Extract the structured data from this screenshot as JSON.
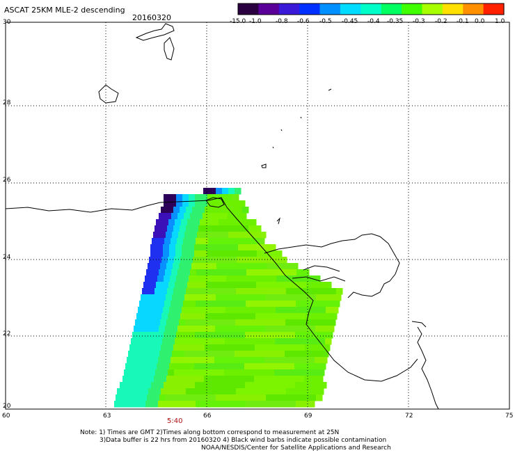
{
  "title": "ASCAT 25KM MLE-2 descending",
  "date": "20160320",
  "colorbar": {
    "labels": [
      "-15.0",
      "-1.0",
      "-0.8",
      "-0.6",
      "-0.5",
      "-0.45",
      "-0.4",
      "-0.35",
      "-0.3",
      "-0.2",
      "-0.1",
      "0.0",
      "1.0"
    ],
    "colors": [
      "#2a0040",
      "#5a0098",
      "#3a1ad8",
      "#0030ff",
      "#0090ff",
      "#00dcff",
      "#00ffc8",
      "#00ff60",
      "#40ff00",
      "#a8ff00",
      "#ffe000",
      "#ff9000",
      "#ff2000"
    ]
  },
  "map": {
    "lat_labels": [
      "30",
      "28",
      "26",
      "24",
      "22",
      "20"
    ],
    "lon_labels": [
      "60",
      "63",
      "66",
      "69",
      "72",
      "75"
    ],
    "pass_time": "5:40",
    "pass_time_color": "#b01010",
    "coast_color": "#000000",
    "grid_style": "dotted"
  },
  "notes": {
    "line1": "Note: 1) Times are GMT 2)Times along bottom correspond to measurement at 25N",
    "line2": "3)Data buffer is 22 hrs from 20160320 4) Black wind barbs indicate possible contamination",
    "line3": "NOAA/NESDIS/Center for Satellite Applications and Research"
  }
}
